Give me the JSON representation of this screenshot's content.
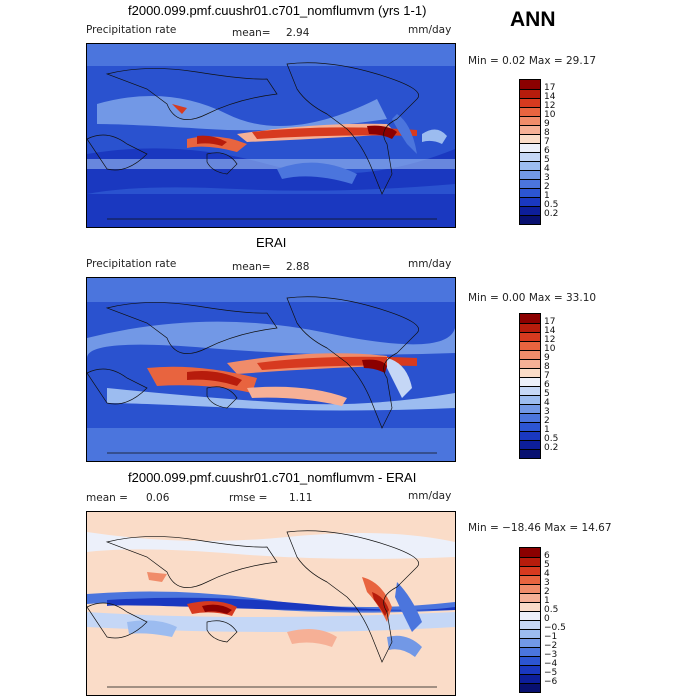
{
  "season": "ANN",
  "panels": [
    {
      "title": "f2000.099.pmf.cuushr01.c701_nomflumvm (yrs 1-1)",
      "left_label": "Precipitation rate",
      "mean_label": "mean=",
      "mean_value": "2.94",
      "units": "mm/day",
      "range_text": "Min =   0.02 Max =  29.17",
      "colorbar": [
        "17",
        "14",
        "12",
        "10",
        "9",
        "8",
        "7",
        "6",
        "5",
        "4",
        "3",
        "2",
        "1",
        "0.5",
        "0.2"
      ]
    },
    {
      "title": "ERAI",
      "left_label": "Precipitation rate",
      "mean_label": "mean=",
      "mean_value": "2.88",
      "units": "mm/day",
      "range_text": "Min =   0.00 Max =  33.10",
      "colorbar": [
        "17",
        "14",
        "12",
        "10",
        "9",
        "8",
        "7",
        "6",
        "5",
        "4",
        "3",
        "2",
        "1",
        "0.5",
        "0.2"
      ]
    },
    {
      "title": "f2000.099.pmf.cuushr01.c701_nomflumvm - ERAI",
      "mean_label": "mean =",
      "mean_value": "0.06",
      "rmse_label": "rmse =",
      "rmse_value": "1.11",
      "units": "mm/day",
      "range_text": "Min = −18.46 Max =  14.67",
      "colorbar": [
        "6",
        "5",
        "4",
        "3",
        "2",
        "1",
        "0.5",
        "0",
        "−0.5",
        "−1",
        "−2",
        "−3",
        "−4",
        "−5",
        "−6"
      ]
    }
  ],
  "colors": {
    "precip_scale": [
      "#8b0000",
      "#b71c0c",
      "#d73a1f",
      "#e8643f",
      "#f08c6a",
      "#f6b096",
      "#fadcc8",
      "#ecf0fa",
      "#c5d7f6",
      "#9cbcf0",
      "#7298e6",
      "#4b75dd",
      "#2c55d2",
      "#1a38c0",
      "#0d1e9a",
      "#081070"
    ],
    "diff_scale": [
      "#8b0000",
      "#b71c0c",
      "#d73a1f",
      "#e8643f",
      "#f08c6a",
      "#f6b096",
      "#fadcc8",
      "#ecf0fa",
      "#c5d7f6",
      "#9cbcf0",
      "#7298e6",
      "#4b75dd",
      "#2c55d2",
      "#1a38c0",
      "#0d1e9a",
      "#081070"
    ]
  }
}
